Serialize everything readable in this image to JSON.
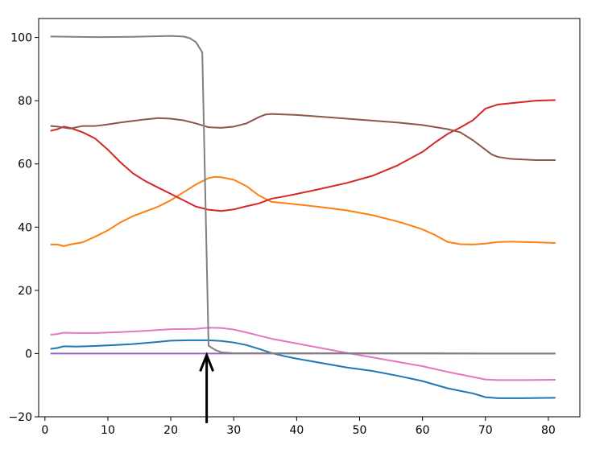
{
  "chart_data": {
    "type": "line",
    "title": "",
    "xlabel": "",
    "ylabel": "",
    "xlim": [
      -1,
      85
    ],
    "ylim": [
      -20,
      106
    ],
    "x_ticks": [
      0,
      10,
      20,
      30,
      40,
      50,
      60,
      70,
      80
    ],
    "y_ticks": [
      -20,
      0,
      20,
      40,
      60,
      80,
      100
    ],
    "grid": false,
    "legend": "none",
    "series": [
      {
        "color": "#1f77b4",
        "points": [
          [
            1,
            1.5
          ],
          [
            2,
            1.8
          ],
          [
            3,
            2.3
          ],
          [
            5,
            2.2
          ],
          [
            8,
            2.4
          ],
          [
            10,
            2.6
          ],
          [
            14,
            3.0
          ],
          [
            18,
            3.7
          ],
          [
            20,
            4.1
          ],
          [
            23,
            4.2
          ],
          [
            26,
            4.2
          ],
          [
            28,
            4.0
          ],
          [
            30,
            3.5
          ],
          [
            32,
            2.7
          ],
          [
            34,
            1.5
          ],
          [
            36,
            0.2
          ],
          [
            38,
            -0.8
          ],
          [
            40,
            -1.6
          ],
          [
            44,
            -3.0
          ],
          [
            48,
            -4.4
          ],
          [
            52,
            -5.5
          ],
          [
            56,
            -7.0
          ],
          [
            60,
            -8.7
          ],
          [
            64,
            -11.0
          ],
          [
            68,
            -12.6
          ],
          [
            70,
            -13.8
          ],
          [
            72,
            -14.1
          ],
          [
            76,
            -14.1
          ],
          [
            81,
            -14.0
          ]
        ]
      },
      {
        "color": "#ff7f0e",
        "points": [
          [
            1,
            34.5
          ],
          [
            2,
            34.5
          ],
          [
            3,
            34.0
          ],
          [
            4,
            34.5
          ],
          [
            6,
            35.2
          ],
          [
            8,
            37.0
          ],
          [
            10,
            39.0
          ],
          [
            12,
            41.5
          ],
          [
            14,
            43.5
          ],
          [
            16,
            45.0
          ],
          [
            18,
            46.5
          ],
          [
            20,
            48.5
          ],
          [
            22,
            51.0
          ],
          [
            24,
            53.5
          ],
          [
            26,
            55.5
          ],
          [
            27,
            55.9
          ],
          [
            28,
            55.8
          ],
          [
            30,
            55.0
          ],
          [
            32,
            53.0
          ],
          [
            34,
            50.0
          ],
          [
            36,
            48.0
          ],
          [
            38,
            47.6
          ],
          [
            40,
            47.2
          ],
          [
            44,
            46.3
          ],
          [
            48,
            45.3
          ],
          [
            52,
            43.8
          ],
          [
            56,
            41.8
          ],
          [
            58,
            40.6
          ],
          [
            60,
            39.3
          ],
          [
            62,
            37.5
          ],
          [
            64,
            35.3
          ],
          [
            66,
            34.6
          ],
          [
            68,
            34.5
          ],
          [
            70,
            34.8
          ],
          [
            72,
            35.3
          ],
          [
            74,
            35.4
          ],
          [
            78,
            35.2
          ],
          [
            81,
            35.0
          ]
        ]
      },
      {
        "color": "#d62728",
        "points": [
          [
            1,
            70.5
          ],
          [
            2,
            71.0
          ],
          [
            3,
            71.8
          ],
          [
            4,
            71.4
          ],
          [
            6,
            70.0
          ],
          [
            8,
            68.0
          ],
          [
            10,
            64.5
          ],
          [
            12,
            60.5
          ],
          [
            14,
            57.0
          ],
          [
            16,
            54.5
          ],
          [
            18,
            52.5
          ],
          [
            20,
            50.5
          ],
          [
            22,
            48.5
          ],
          [
            24,
            46.5
          ],
          [
            26,
            45.5
          ],
          [
            28,
            45.1
          ],
          [
            30,
            45.6
          ],
          [
            32,
            46.6
          ],
          [
            34,
            47.5
          ],
          [
            36,
            49.0
          ],
          [
            38,
            49.7
          ],
          [
            40,
            50.5
          ],
          [
            44,
            52.2
          ],
          [
            48,
            54.0
          ],
          [
            52,
            56.2
          ],
          [
            56,
            59.5
          ],
          [
            60,
            63.8
          ],
          [
            62,
            66.8
          ],
          [
            64,
            69.5
          ],
          [
            66,
            71.5
          ],
          [
            68,
            73.8
          ],
          [
            70,
            77.5
          ],
          [
            72,
            78.8
          ],
          [
            76,
            79.6
          ],
          [
            78,
            80.0
          ],
          [
            81,
            80.2
          ]
        ]
      },
      {
        "color": "#8c564b",
        "points": [
          [
            1,
            72.0
          ],
          [
            2,
            71.8
          ],
          [
            4,
            71.2
          ],
          [
            6,
            72.0
          ],
          [
            8,
            72.0
          ],
          [
            10,
            72.5
          ],
          [
            12,
            73.1
          ],
          [
            14,
            73.6
          ],
          [
            16,
            74.1
          ],
          [
            18,
            74.5
          ],
          [
            20,
            74.3
          ],
          [
            22,
            73.8
          ],
          [
            24,
            72.8
          ],
          [
            26,
            71.6
          ],
          [
            28,
            71.4
          ],
          [
            30,
            71.8
          ],
          [
            32,
            72.8
          ],
          [
            34,
            74.8
          ],
          [
            35,
            75.6
          ],
          [
            36,
            75.8
          ],
          [
            40,
            75.5
          ],
          [
            44,
            74.9
          ],
          [
            48,
            74.3
          ],
          [
            52,
            73.7
          ],
          [
            56,
            73.1
          ],
          [
            60,
            72.3
          ],
          [
            64,
            71.0
          ],
          [
            66,
            70.0
          ],
          [
            68,
            67.5
          ],
          [
            70,
            64.5
          ],
          [
            71,
            63.0
          ],
          [
            72,
            62.2
          ],
          [
            74,
            61.6
          ],
          [
            78,
            61.2
          ],
          [
            81,
            61.2
          ]
        ]
      },
      {
        "color": "#e377c2",
        "points": [
          [
            1,
            6.0
          ],
          [
            2,
            6.2
          ],
          [
            3,
            6.6
          ],
          [
            5,
            6.5
          ],
          [
            8,
            6.5
          ],
          [
            12,
            6.8
          ],
          [
            16,
            7.2
          ],
          [
            20,
            7.7
          ],
          [
            24,
            7.8
          ],
          [
            26,
            8.2
          ],
          [
            28,
            8.1
          ],
          [
            30,
            7.6
          ],
          [
            32,
            6.7
          ],
          [
            34,
            5.7
          ],
          [
            36,
            4.7
          ],
          [
            40,
            3.2
          ],
          [
            44,
            1.7
          ],
          [
            48,
            0.2
          ],
          [
            52,
            -1.2
          ],
          [
            56,
            -2.6
          ],
          [
            60,
            -4.0
          ],
          [
            64,
            -5.8
          ],
          [
            68,
            -7.4
          ],
          [
            70,
            -8.2
          ],
          [
            72,
            -8.4
          ],
          [
            76,
            -8.4
          ],
          [
            81,
            -8.3
          ]
        ]
      },
      {
        "color": "#9467bd",
        "points": [
          [
            1,
            0
          ],
          [
            81,
            0
          ]
        ]
      },
      {
        "color": "#7f7f7f",
        "points": [
          [
            1,
            100.3
          ],
          [
            8,
            100.1
          ],
          [
            14,
            100.2
          ],
          [
            18,
            100.4
          ],
          [
            20,
            100.5
          ],
          [
            22,
            100.3
          ],
          [
            23,
            99.8
          ],
          [
            24,
            98.5
          ],
          [
            25,
            95.3
          ],
          [
            26,
            2.5
          ],
          [
            27,
            1.2
          ],
          [
            28,
            0.4
          ],
          [
            30,
            0.1
          ],
          [
            40,
            0.1
          ],
          [
            50,
            0.1
          ],
          [
            60,
            0.1
          ],
          [
            70,
            0
          ],
          [
            81,
            0
          ]
        ]
      }
    ],
    "annotations": [
      {
        "type": "arrow",
        "x": 25.7,
        "y_from": -22.0,
        "y_to": -0.5,
        "color": "#000000"
      }
    ]
  }
}
